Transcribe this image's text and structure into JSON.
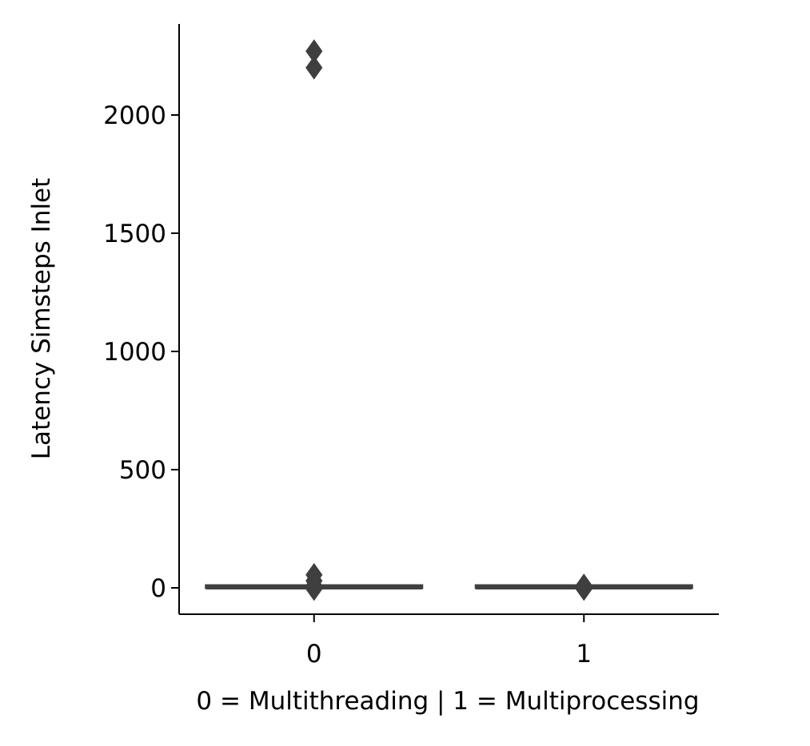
{
  "chart_data": {
    "type": "box",
    "xlabel": "0 = Multithreading | 1 = Multiprocessing",
    "ylabel": "Latency Simsteps Inlet",
    "categories": [
      "0",
      "1"
    ],
    "ylim": [
      -110,
      2380
    ],
    "yticks": [
      0,
      500,
      1000,
      1500,
      2000
    ],
    "ytick_labels": [
      "0",
      "500",
      "1000",
      "1500",
      "2000"
    ],
    "grid": false,
    "legend": "none",
    "box_color": "#3f3f3f",
    "boxes": [
      {
        "category": "0",
        "min": 0,
        "q1": 0,
        "median": 0,
        "q3": 2,
        "max": 4,
        "outliers": [
          2270,
          2200,
          55,
          30,
          10,
          -5
        ]
      },
      {
        "category": "1",
        "min": 0,
        "q1": 0,
        "median": 0,
        "q3": 0,
        "max": 0,
        "outliers": [
          10,
          5,
          0,
          -5
        ]
      }
    ]
  }
}
